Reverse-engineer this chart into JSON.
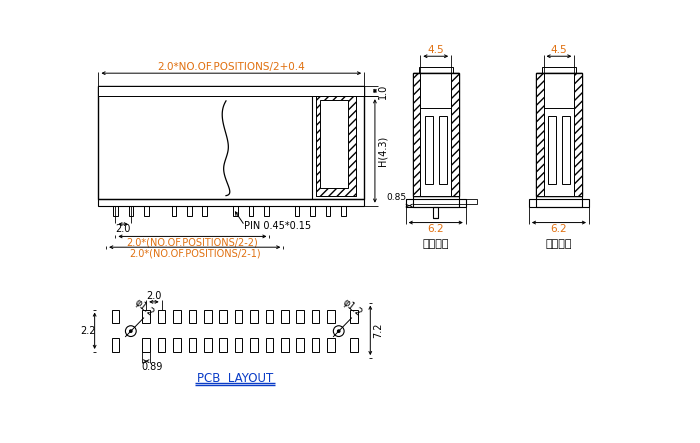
{
  "bg_color": "#ffffff",
  "line_color": "#000000",
  "text_color": "#000000",
  "blue_text_color": "#0a3cc7",
  "orange_text_color": "#e07010",
  "dim_labels": {
    "top_width": "2.0*NO.OF.POSITIONS/2+0.4",
    "pin_pitch": "2.0",
    "pin_label": "PIN 0.45*0.15",
    "dim_2n2": "2.0*(NO.OF.POSITIONS/2-2)",
    "dim_2n1": "2.0*(NO.OF.POSITIONS/2-1)",
    "height_H": "H(4.3)",
    "height_1": "1.0",
    "side_width1": "4.5",
    "side_width2": "4.5",
    "side_bot1": "6.2",
    "side_bot2": "6.2",
    "side_dim085": "0.85",
    "pcb_pitch": "2.0",
    "pcb_dia": "φ1.2",
    "pcb_dia2": "φ1.2",
    "pcb_width": "0.89",
    "pcb_height": "2.2",
    "pcb_total": "7.2",
    "label_with": "带定位桃",
    "label_without": "无定位桃",
    "pcb_layout": "PCB  LAYOUT"
  }
}
